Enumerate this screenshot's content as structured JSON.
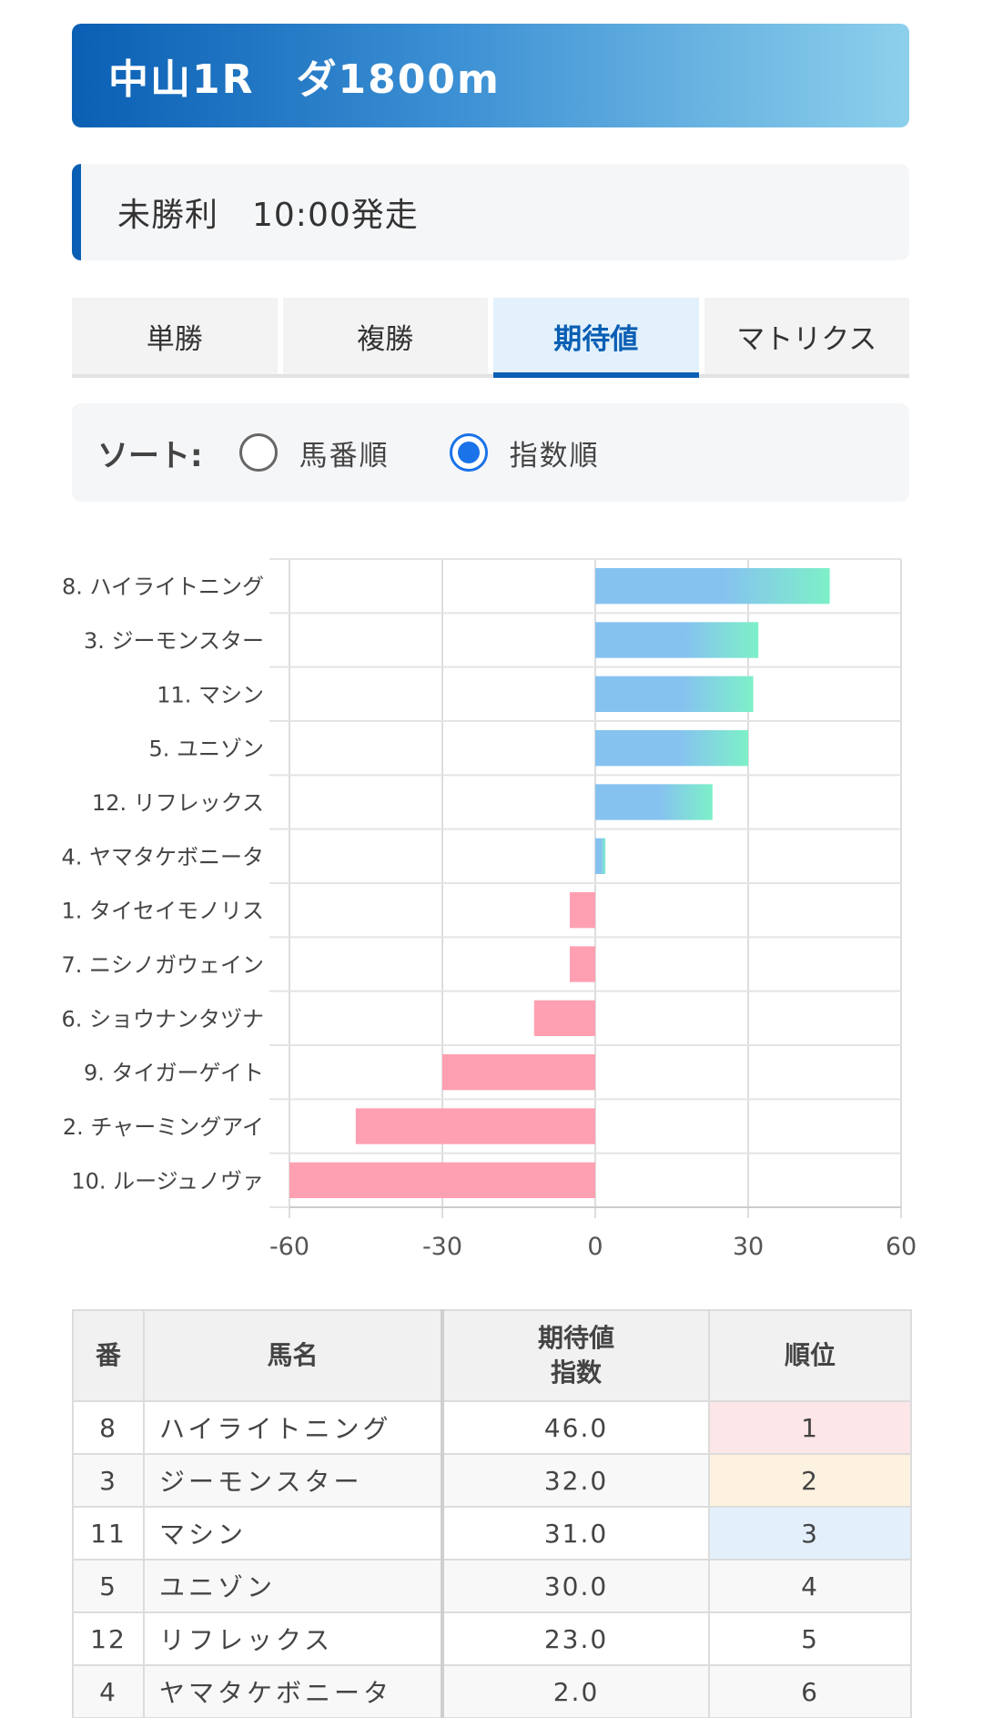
{
  "header": {
    "title": "中山1R　ダ1800m"
  },
  "subheader": {
    "text": "未勝利　10:00発走"
  },
  "tabs": [
    {
      "label": "単勝",
      "active": false
    },
    {
      "label": "複勝",
      "active": false
    },
    {
      "label": "期待値",
      "active": true
    },
    {
      "label": "マトリクス",
      "active": false
    }
  ],
  "sort": {
    "label": "ソート:",
    "options": [
      {
        "label": "馬番順",
        "checked": false
      },
      {
        "label": "指数順",
        "checked": true
      }
    ]
  },
  "colors": {
    "positive_start": "#86c2f0",
    "positive_end": "#7df0c8",
    "negative": "#ffa0b2",
    "accent": "#0a5fb4"
  },
  "chart_data": {
    "type": "bar",
    "orientation": "horizontal",
    "categories": [
      "8. ハイライトニング",
      "3. ジーモンスター",
      "11. マシン",
      "5. ユニゾン",
      "12. リフレックス",
      "4. ヤマタケボニータ",
      "1. タイセイモノリス",
      "7. ニシノガウェイン",
      "6. ショウナンタヅナ",
      "9. タイガーゲイト",
      "2. チャーミングアイ",
      "10. ルージュノヴァ"
    ],
    "values": [
      46,
      32,
      31,
      30,
      23,
      2,
      -5,
      -5,
      -12,
      -30,
      -47,
      -60
    ],
    "xlim": [
      -60,
      60
    ],
    "xticks": [
      -60,
      -30,
      0,
      30,
      60
    ],
    "grid": true
  },
  "table": {
    "headers": {
      "num": "番",
      "name": "馬名",
      "index_line1": "期待値",
      "index_line2": "指数",
      "rank": "順位"
    },
    "rows": [
      {
        "num": "8",
        "name": "ハイライトニング",
        "index": "46.0",
        "rank": "1"
      },
      {
        "num": "3",
        "name": "ジーモンスター",
        "index": "32.0",
        "rank": "2"
      },
      {
        "num": "11",
        "name": "マシン",
        "index": "31.0",
        "rank": "3"
      },
      {
        "num": "5",
        "name": "ユニゾン",
        "index": "30.0",
        "rank": "4"
      },
      {
        "num": "12",
        "name": "リフレックス",
        "index": "23.0",
        "rank": "5"
      },
      {
        "num": "4",
        "name": "ヤマタケボニータ",
        "index": "2.0",
        "rank": "6"
      }
    ]
  }
}
